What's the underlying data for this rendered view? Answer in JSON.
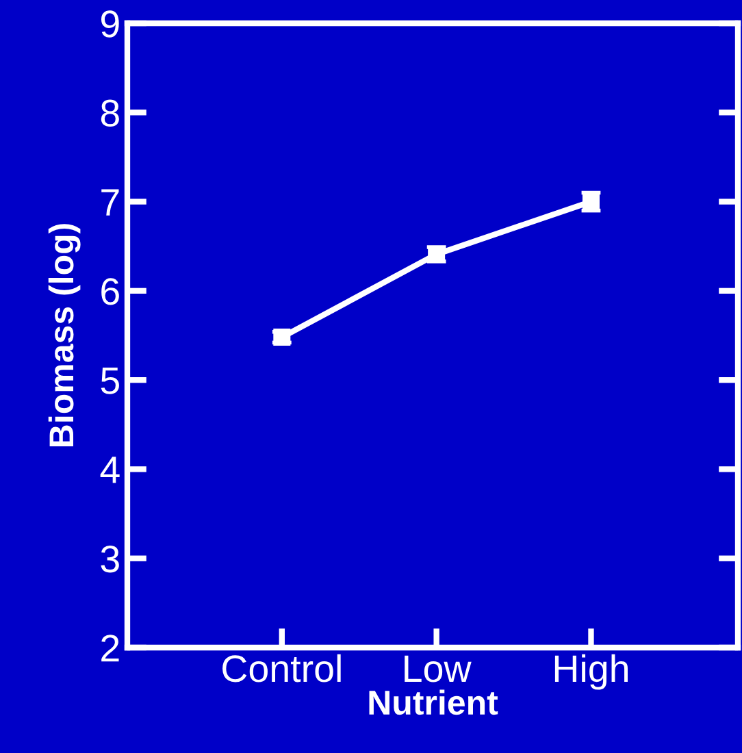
{
  "chart_data": {
    "type": "line",
    "xlabel": "Nutrient",
    "ylabel": "Biomass (log)",
    "categories": [
      "Control",
      "Low",
      "High"
    ],
    "series": [
      {
        "color": "#ffffff",
        "values": [
          5.48,
          6.41,
          7.0
        ],
        "errors": [
          0.06,
          0.08,
          0.1
        ]
      }
    ],
    "ylim": [
      2,
      9
    ],
    "yticks": [
      2,
      3,
      4,
      5,
      6,
      7,
      8,
      9
    ],
    "marker": "square",
    "line_style": "solid",
    "grid": false,
    "legend": false
  }
}
